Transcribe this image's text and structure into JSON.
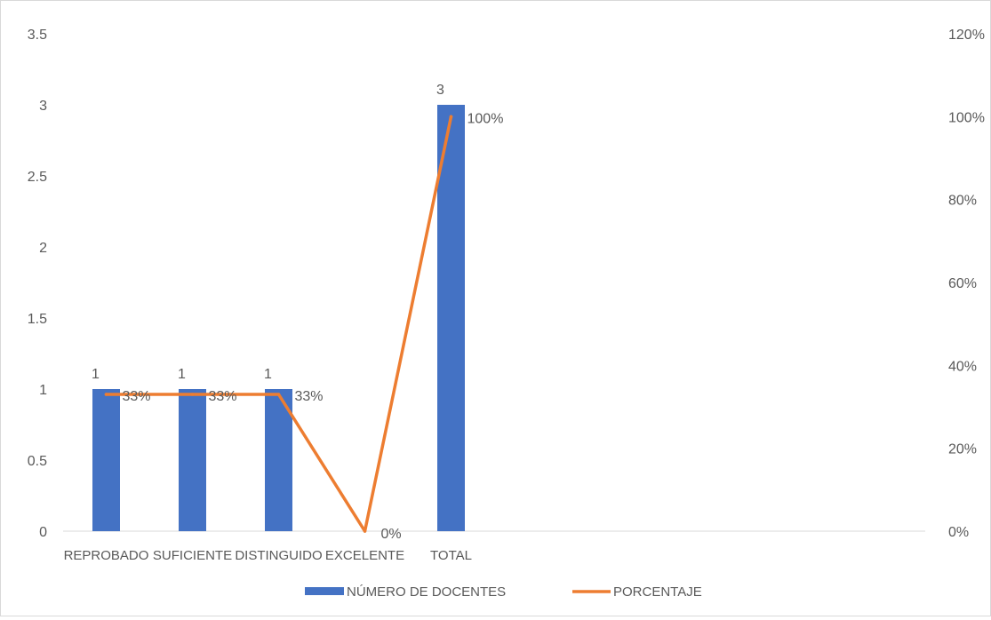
{
  "chart_data": {
    "type": "bar",
    "categories": [
      "REPROBADO",
      "SUFICIENTE",
      "DISTINGUIDO",
      "EXCELENTE",
      "TOTAL"
    ],
    "series": [
      {
        "name": "NÚMERO DE DOCENTES",
        "type": "bar",
        "axis": "left",
        "color": "#4472c4",
        "values": [
          1,
          1,
          1,
          0,
          3
        ],
        "labels": [
          "1",
          "1",
          "1",
          "",
          "3"
        ]
      },
      {
        "name": "PORCENTAJE",
        "type": "line",
        "axis": "right",
        "color": "#ed7d31",
        "values": [
          0.33,
          0.33,
          0.33,
          0,
          1
        ],
        "labels": [
          "33%",
          "33%",
          "33%",
          "0%",
          "100%"
        ]
      }
    ],
    "y_left": {
      "range": [
        0,
        3.5
      ],
      "ticks": [
        "0",
        "0.5",
        "1",
        "1.5",
        "2",
        "2.5",
        "3",
        "3.5"
      ]
    },
    "y_right": {
      "range": [
        0,
        1.2
      ],
      "ticks": [
        "0%",
        "20%",
        "40%",
        "60%",
        "80%",
        "100%",
        "120%"
      ]
    },
    "grid": false,
    "legend": "bottom"
  }
}
